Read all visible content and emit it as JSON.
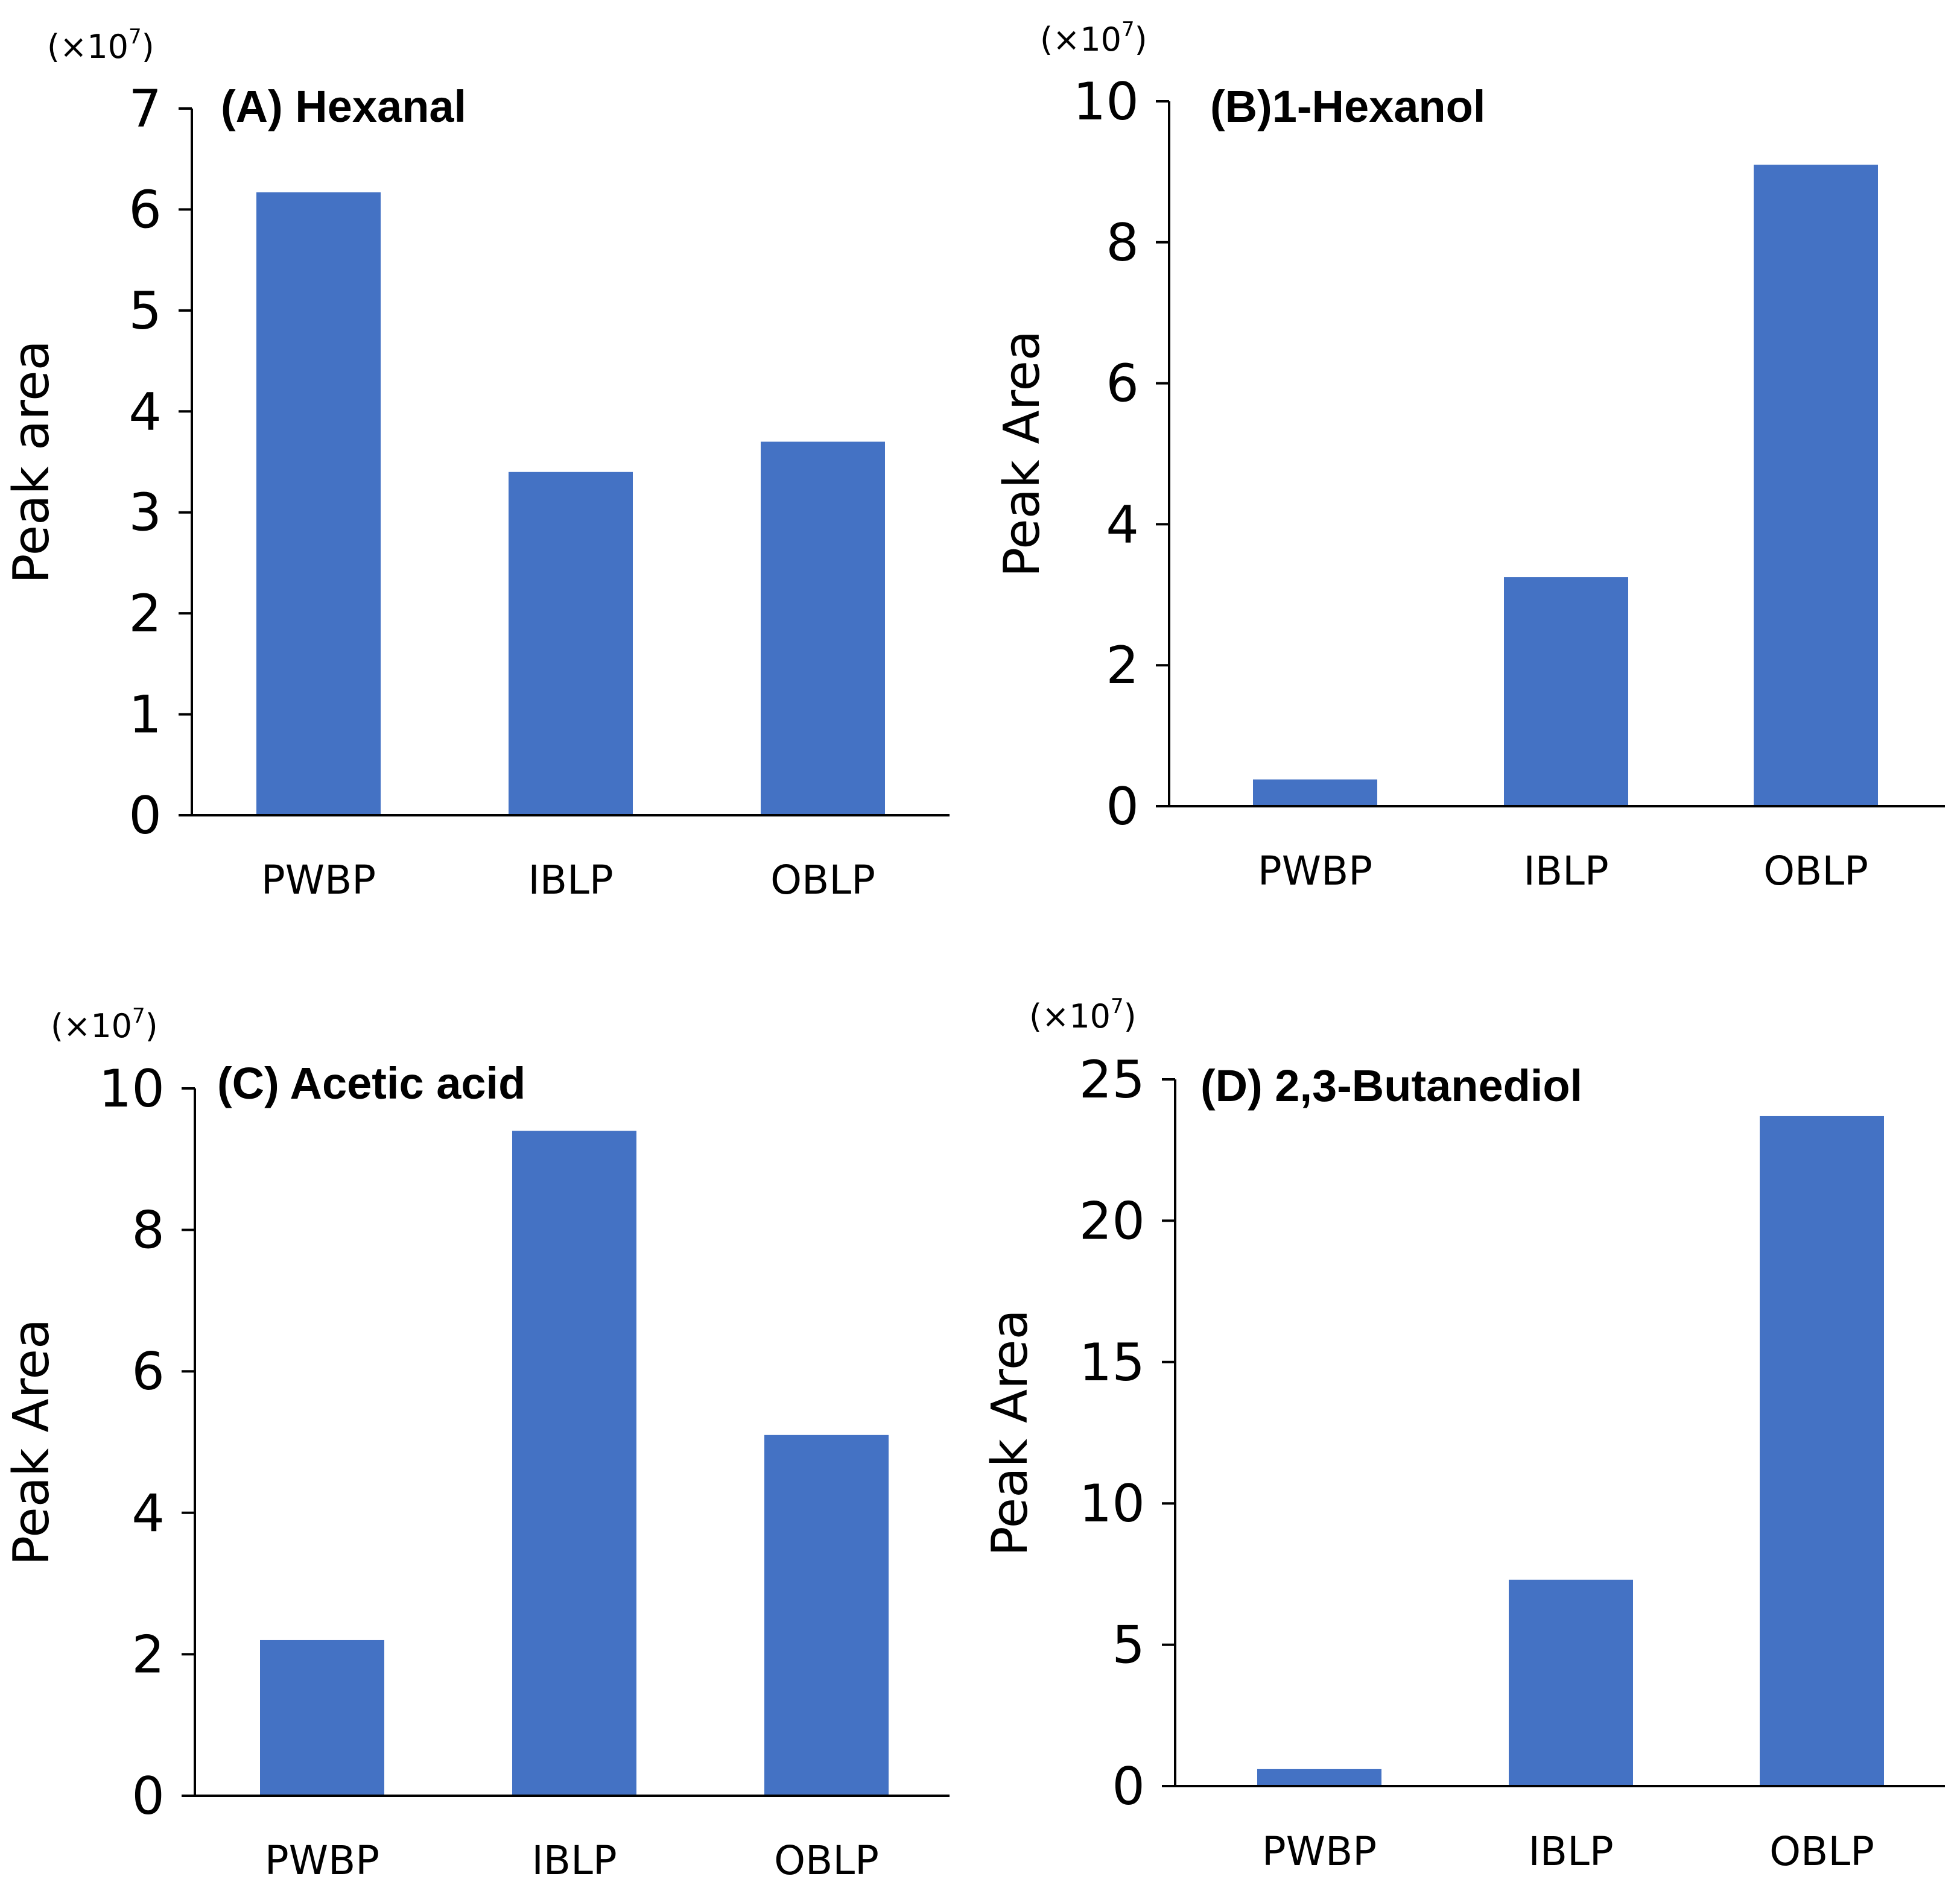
{
  "chart_data": [
    {
      "id": "A",
      "type": "bar",
      "title": "(A) Hexanal",
      "xlabel": "",
      "ylabel": "Peak area",
      "scale_note": "(×10",
      "scale_exp": "7",
      "scale_close": ")",
      "categories": [
        "PWBP",
        "IBLP",
        "OBLP"
      ],
      "values": [
        6.17,
        3.4,
        3.7
      ],
      "ylim": [
        0,
        7
      ],
      "yticks": [
        0,
        1,
        2,
        3,
        4,
        5,
        6,
        7
      ],
      "color": "#4472C4"
    },
    {
      "id": "B",
      "type": "bar",
      "title": "(B)1-Hexanol",
      "xlabel": "",
      "ylabel": "Peak Area",
      "scale_note": "(×10",
      "scale_exp": "7",
      "scale_close": ")",
      "categories": [
        "PWBP",
        "IBLP",
        "OBLP"
      ],
      "values": [
        0.38,
        3.25,
        9.1
      ],
      "ylim": [
        0,
        10
      ],
      "yticks": [
        0,
        2,
        4,
        6,
        8,
        10
      ],
      "color": "#4472C4"
    },
    {
      "id": "C",
      "type": "bar",
      "title": "(C) Acetic acid",
      "xlabel": "",
      "ylabel": "Peak Area",
      "scale_note": "(×10",
      "scale_exp": "7",
      "scale_close": ")",
      "categories": [
        "PWBP",
        "IBLP",
        "OBLP"
      ],
      "values": [
        2.2,
        9.4,
        5.1
      ],
      "ylim": [
        0,
        10
      ],
      "yticks": [
        0,
        2,
        4,
        6,
        8,
        10
      ],
      "color": "#4472C4"
    },
    {
      "id": "D",
      "type": "bar",
      "title": "(D) 2,3-Butanediol",
      "xlabel": "",
      "ylabel": "Peak Area",
      "scale_note": "(×10",
      "scale_exp": "7",
      "scale_close": ")",
      "categories": [
        "PWBP",
        "IBLP",
        "OBLP"
      ],
      "values": [
        0.6,
        7.3,
        23.7
      ],
      "ylim": [
        0,
        25
      ],
      "yticks": [
        0,
        5,
        10,
        15,
        20,
        25
      ],
      "color": "#4472C4"
    }
  ]
}
